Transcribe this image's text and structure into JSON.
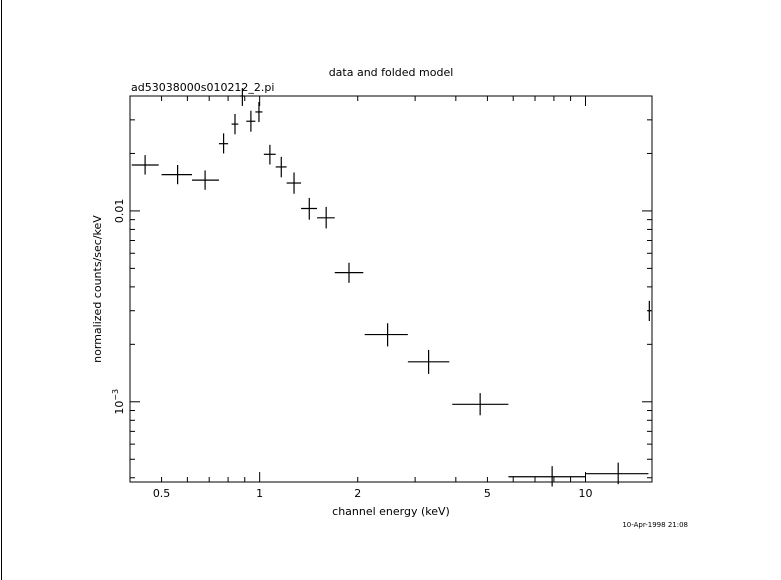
{
  "chart_data": {
    "type": "scatter",
    "title": "data and folded model",
    "subtitle": "ad53038000s010212_2.pi",
    "xlabel": "channel energy (keV)",
    "ylabel": "normalized counts/sec/keV",
    "timestamp": "10-Apr-1998 21:08",
    "x_scale": "log",
    "y_scale": "log",
    "xlim": [
      0.4,
      16.0
    ],
    "ylim": [
      0.00038,
      0.04
    ],
    "x_ticks": [
      {
        "value": 0.5,
        "label": "0.5"
      },
      {
        "value": 1,
        "label": "1"
      },
      {
        "value": 2,
        "label": "2"
      },
      {
        "value": 5,
        "label": "5"
      },
      {
        "value": 10,
        "label": "10"
      }
    ],
    "y_ticks": [
      {
        "value": 0.01,
        "label": "0.01"
      },
      {
        "value": 0.001,
        "label_base": "10",
        "label_exp": "−3"
      }
    ],
    "points": [
      {
        "x": 0.445,
        "xlo": 0.405,
        "xhi": 0.49,
        "y": 0.0174,
        "ylo": 0.0155,
        "yhi": 0.0196
      },
      {
        "x": 0.56,
        "xlo": 0.5,
        "xhi": 0.62,
        "y": 0.0155,
        "ylo": 0.0138,
        "yhi": 0.0174
      },
      {
        "x": 0.68,
        "xlo": 0.62,
        "xhi": 0.75,
        "y": 0.0145,
        "ylo": 0.0129,
        "yhi": 0.0163
      },
      {
        "x": 0.775,
        "xlo": 0.75,
        "xhi": 0.8,
        "y": 0.0225,
        "ylo": 0.02,
        "yhi": 0.0255
      },
      {
        "x": 0.84,
        "xlo": 0.82,
        "xhi": 0.86,
        "y": 0.0285,
        "ylo": 0.0252,
        "yhi": 0.0322
      },
      {
        "x": 0.885,
        "xlo": 0.87,
        "xhi": 0.9,
        "y": 0.04,
        "ylo": 0.0355,
        "yhi": 0.044
      },
      {
        "x": 0.94,
        "xlo": 0.91,
        "xhi": 0.97,
        "y": 0.0295,
        "ylo": 0.026,
        "yhi": 0.0335
      },
      {
        "x": 0.995,
        "xlo": 0.97,
        "xhi": 1.02,
        "y": 0.033,
        "ylo": 0.0292,
        "yhi": 0.0372
      },
      {
        "x": 1.075,
        "xlo": 1.03,
        "xhi": 1.12,
        "y": 0.0198,
        "ylo": 0.0175,
        "yhi": 0.0222
      },
      {
        "x": 1.165,
        "xlo": 1.12,
        "xhi": 1.21,
        "y": 0.017,
        "ylo": 0.015,
        "yhi": 0.0192
      },
      {
        "x": 1.275,
        "xlo": 1.21,
        "xhi": 1.34,
        "y": 0.014,
        "ylo": 0.0123,
        "yhi": 0.0159
      },
      {
        "x": 1.42,
        "xlo": 1.34,
        "xhi": 1.5,
        "y": 0.0103,
        "ylo": 0.009,
        "yhi": 0.0117
      },
      {
        "x": 1.6,
        "xlo": 1.5,
        "xhi": 1.7,
        "y": 0.0092,
        "ylo": 0.0081,
        "yhi": 0.0105
      },
      {
        "x": 1.88,
        "xlo": 1.7,
        "xhi": 2.08,
        "y": 0.00475,
        "ylo": 0.0042,
        "yhi": 0.00535
      },
      {
        "x": 2.47,
        "xlo": 2.1,
        "xhi": 2.85,
        "y": 0.00225,
        "ylo": 0.00195,
        "yhi": 0.00258
      },
      {
        "x": 3.3,
        "xlo": 2.85,
        "xhi": 3.82,
        "y": 0.00162,
        "ylo": 0.0014,
        "yhi": 0.00187
      },
      {
        "x": 4.75,
        "xlo": 3.9,
        "xhi": 5.8,
        "y": 0.00097,
        "ylo": 0.00085,
        "yhi": 0.00111
      },
      {
        "x": 7.9,
        "xlo": 5.8,
        "xhi": 10.0,
        "y": 0.000405,
        "ylo": 0.00036,
        "yhi": 0.00046
      },
      {
        "x": 12.6,
        "xlo": 10.0,
        "xhi": 15.6,
        "y": 0.00042,
        "ylo": 0.00037,
        "yhi": 0.00048
      },
      {
        "x": 15.7,
        "xlo": 15.55,
        "xhi": 15.85,
        "y": 0.003,
        "ylo": 0.00265,
        "yhi": 0.00338
      }
    ]
  }
}
